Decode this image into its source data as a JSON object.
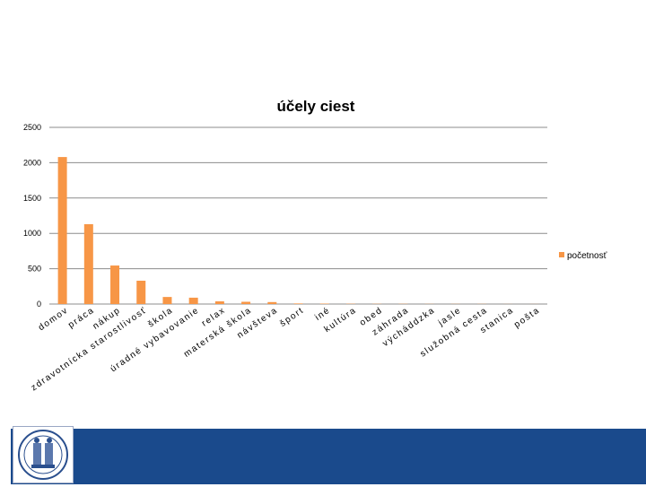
{
  "chart_data": {
    "type": "bar",
    "title": "účely ciest",
    "xlabel": "",
    "ylabel": "",
    "ylim": [
      0,
      2500
    ],
    "yticks": [
      0,
      500,
      1000,
      1500,
      2000,
      2500
    ],
    "grid": true,
    "legend_position": "right",
    "categories": [
      "domov",
      "práca",
      "nákup",
      "zdravotnícka starostlivosť",
      "škola",
      "úradné vybavovanie",
      "relax",
      "materská škola",
      "návšteva",
      "šport",
      "iné",
      "kultúra",
      "obed",
      "záhrada",
      "výcháddzka",
      "jasle",
      "služobná cesta",
      "stanica",
      "pošta"
    ],
    "series": [
      {
        "name": "početnosť",
        "color": "#f79646",
        "values": [
          2080,
          1130,
          545,
          330,
          100,
          90,
          38,
          32,
          28,
          8,
          6,
          4,
          3,
          3,
          2,
          2,
          2,
          1,
          1
        ]
      }
    ]
  },
  "branding": {
    "logo_icon": "university-seal-icon",
    "band_color": "#1a4a8c"
  }
}
